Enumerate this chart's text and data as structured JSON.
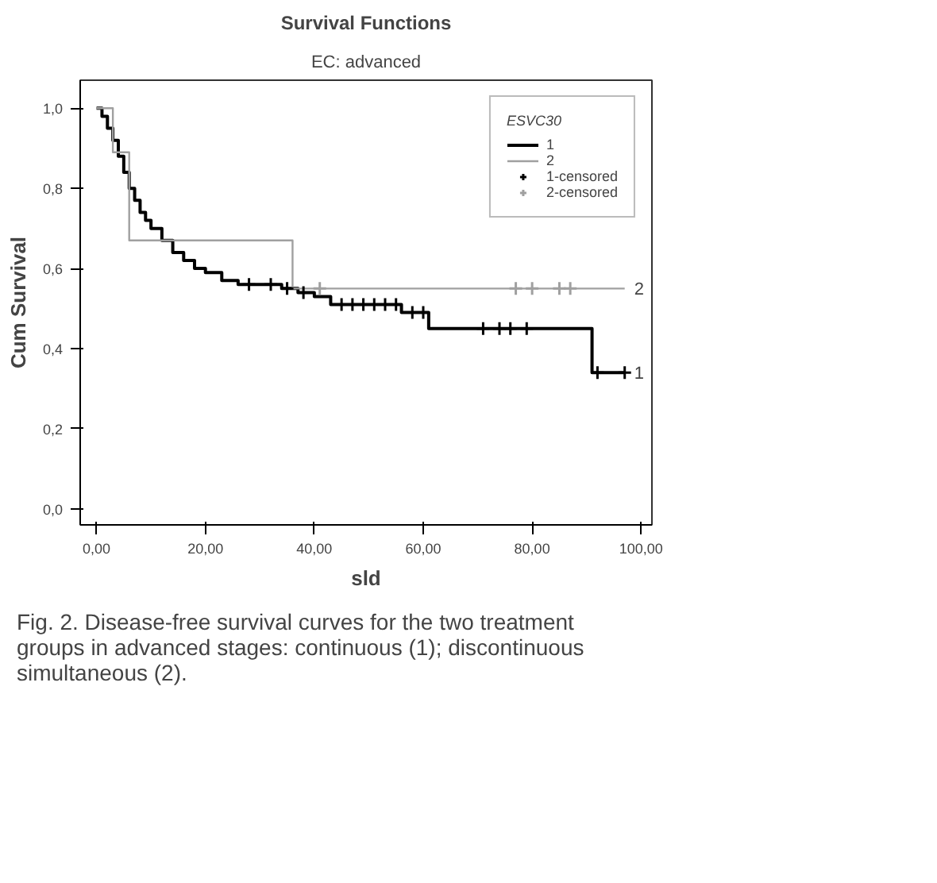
{
  "chart_data": {
    "type": "step",
    "title": "Survival Functions",
    "subtitle": "EC: advanced",
    "xlabel": "sld",
    "ylabel": "Cum Survival",
    "legend_title": "ESVC30",
    "xlim": [
      -3,
      102
    ],
    "ylim": [
      -0.04,
      1.07
    ],
    "xticks": [
      {
        "value": 0,
        "label": "0,00"
      },
      {
        "value": 20,
        "label": "20,00"
      },
      {
        "value": 40,
        "label": "40,00"
      },
      {
        "value": 60,
        "label": "60,00"
      },
      {
        "value": 80,
        "label": "80,00"
      },
      {
        "value": 100,
        "label": "100,00"
      }
    ],
    "yticks": [
      {
        "value": 0,
        "label": "0,0"
      },
      {
        "value": 0.2,
        "label": "0,2"
      },
      {
        "value": 0.4,
        "label": "0,4"
      },
      {
        "value": 0.6,
        "label": "0,6"
      },
      {
        "value": 0.8,
        "label": "0,8"
      },
      {
        "value": 1.0,
        "label": "1,0"
      }
    ],
    "grid": false,
    "legend": "top right",
    "line_style": "solid",
    "series": [
      {
        "name": "1",
        "color": "#000000",
        "x": [
          0,
          1,
          2,
          3,
          4,
          5,
          6,
          7,
          8,
          9,
          10,
          12,
          14,
          16,
          18,
          20,
          23,
          26,
          34,
          37,
          40,
          43,
          56,
          61,
          91,
          97
        ],
        "values": [
          1.0,
          0.98,
          0.95,
          0.92,
          0.88,
          0.84,
          0.8,
          0.77,
          0.74,
          0.72,
          0.7,
          0.67,
          0.64,
          0.62,
          0.6,
          0.59,
          0.57,
          0.56,
          0.55,
          0.54,
          0.53,
          0.51,
          0.49,
          0.45,
          0.34,
          0.34
        ]
      },
      {
        "name": "2",
        "color": "#a0a0a0",
        "x": [
          0,
          3,
          6,
          36,
          97
        ],
        "values": [
          1.0,
          0.89,
          0.67,
          0.55,
          0.55
        ]
      },
      {
        "name": "1-censored",
        "type": "scatter",
        "marker": "cross",
        "color": "#000000",
        "x": [
          28,
          32,
          35,
          38,
          45,
          47,
          49,
          51,
          53,
          55,
          58,
          60,
          71,
          74,
          76,
          79,
          92,
          97
        ],
        "values": [
          0.56,
          0.56,
          0.55,
          0.54,
          0.51,
          0.51,
          0.51,
          0.51,
          0.51,
          0.51,
          0.49,
          0.49,
          0.45,
          0.45,
          0.45,
          0.45,
          0.34,
          0.34
        ]
      },
      {
        "name": "2-censored",
        "type": "scatter",
        "marker": "cross",
        "color": "#a0a0a0",
        "x": [
          41,
          77,
          80,
          85,
          87
        ],
        "values": [
          0.55,
          0.55,
          0.55,
          0.55,
          0.55
        ]
      }
    ],
    "annotations": [
      {
        "text": "2",
        "x": 97,
        "y": 0.55
      },
      {
        "text": "1",
        "x": 97,
        "y": 0.34
      },
      "Fig. 2. Disease-free survival curves for the two treatment groups in advanced stages: continuous (1); discontinuous simultaneous (2)."
    ]
  }
}
